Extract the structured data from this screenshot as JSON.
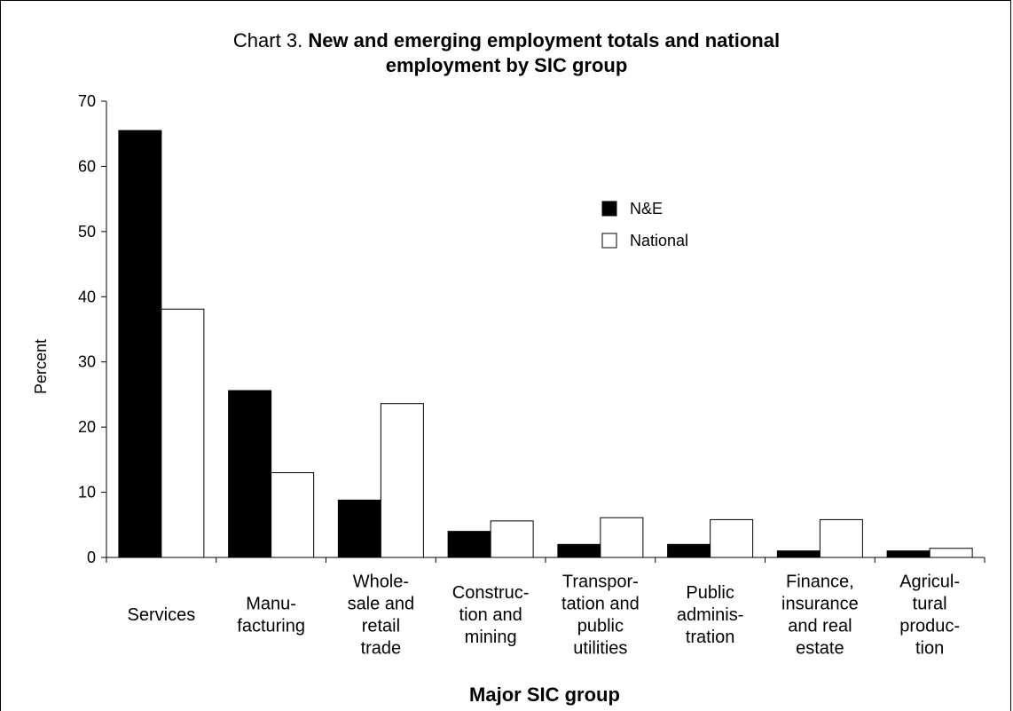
{
  "chart_data": {
    "type": "bar",
    "title_prefix": "Chart 3.",
    "title_line1": "New and emerging employment totals and national",
    "title_line2": "employment by SIC group",
    "xlabel": "Major SIC group",
    "ylabel": "Percent",
    "ylim": [
      0,
      70
    ],
    "yticks": [
      0,
      10,
      20,
      30,
      40,
      50,
      60,
      70
    ],
    "grid": false,
    "legend_position": "upper-right-inside",
    "categories": [
      [
        "Services"
      ],
      [
        "Manu-",
        "facturing"
      ],
      [
        "Whole-",
        "sale and",
        "retail",
        "trade"
      ],
      [
        "Construc-",
        "tion and",
        "mining"
      ],
      [
        "Transpor-",
        "tation and",
        "public",
        "utilities"
      ],
      [
        "Public",
        "adminis-",
        "tration"
      ],
      [
        "Finance,",
        "insurance",
        "and real",
        "estate"
      ],
      [
        "Agricul-",
        "tural",
        "produc-",
        "tion"
      ]
    ],
    "series": [
      {
        "name": "N&E",
        "color": "#000000",
        "values": [
          65.5,
          25.6,
          8.8,
          4.0,
          2.0,
          2.0,
          1.0,
          1.0
        ]
      },
      {
        "name": "National",
        "color": "#ffffff",
        "values": [
          38.1,
          13.0,
          23.6,
          5.6,
          6.1,
          5.8,
          5.8,
          1.4
        ]
      }
    ]
  }
}
